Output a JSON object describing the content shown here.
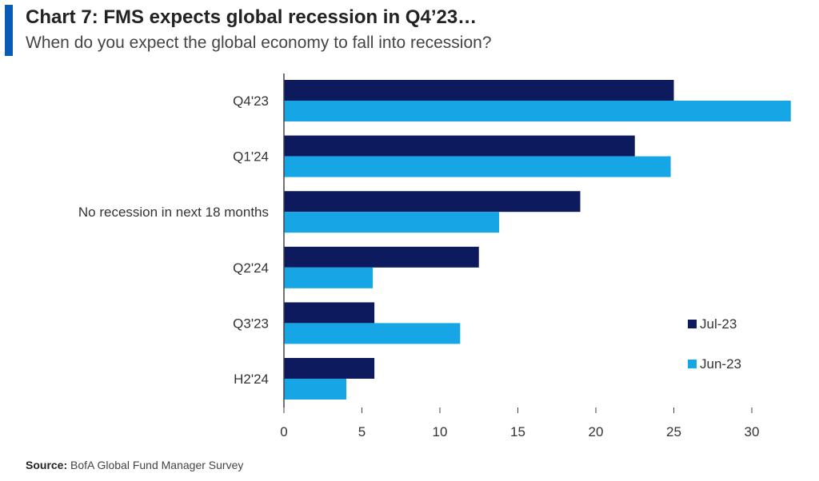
{
  "header": {
    "title": "Chart 7: FMS expects global recession in Q4’23…",
    "subtitle": "When do you expect the global economy to fall into recession?"
  },
  "footer": {
    "source_label": "Source:",
    "source_text": "BofA Global Fund Manager Survey"
  },
  "chart_data": {
    "type": "bar",
    "orientation": "horizontal",
    "title": "Chart 7: FMS expects global recession in Q4’23…",
    "subtitle": "When do you expect the global economy to fall into recession?",
    "categories": [
      "Q4'23",
      "Q1'24",
      "No recession in next 18 months",
      "Q2'24",
      "Q3'23",
      "H2'24"
    ],
    "series": [
      {
        "name": "Jul-23",
        "color": "#0d1b5e",
        "values": [
          25,
          22.5,
          19,
          12.5,
          5.8,
          5.8
        ]
      },
      {
        "name": "Jun-23",
        "color": "#16a6e6",
        "values": [
          32.5,
          24.8,
          13.8,
          5.7,
          11.3,
          4
        ]
      }
    ],
    "xlim": [
      0,
      33
    ],
    "xticks": [
      0,
      5,
      10,
      15,
      20,
      25,
      30
    ],
    "grid": false,
    "legend_position": "right"
  }
}
